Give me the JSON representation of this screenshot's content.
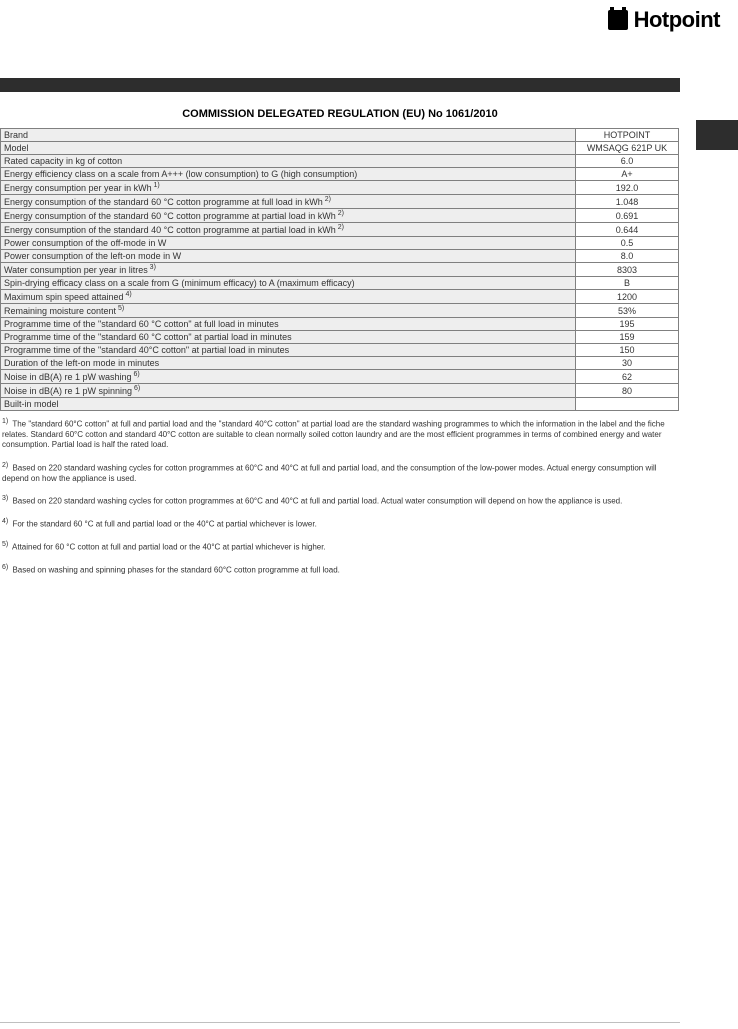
{
  "logo": {
    "text": "Hotpoint"
  },
  "title": "COMMISSION DELEGATED REGULATION (EU) No 1061/2010",
  "rows": [
    {
      "label": "Brand",
      "sup": "",
      "value": "HOTPOINT"
    },
    {
      "label": "Model",
      "sup": "",
      "value": "WMSAQG 621P UK"
    },
    {
      "label": "Rated capacity in kg of cotton",
      "sup": "",
      "value": "6.0"
    },
    {
      "label": "Energy efficiency class on a scale from A+++ (low consumption) to G (high consumption)",
      "sup": "",
      "value": "A+"
    },
    {
      "label": "Energy consumption per year in kWh",
      "sup": "1)",
      "value": "192.0"
    },
    {
      "label": "Energy consumption of the standard 60 °C cotton programme at full load in kWh",
      "sup": "2)",
      "value": "1.048"
    },
    {
      "label": "Energy consumption of the standard 60 °C cotton programme at partial load in kWh",
      "sup": "2)",
      "value": "0.691"
    },
    {
      "label": "Energy consumption of the standard 40 °C cotton programme at partial load in kWh",
      "sup": "2)",
      "value": "0.644"
    },
    {
      "label": "Power consumption of the off-mode in W",
      "sup": "",
      "value": "0.5"
    },
    {
      "label": "Power consumption of the left-on mode in W",
      "sup": "",
      "value": "8.0"
    },
    {
      "label": "Water consumption per year in litres",
      "sup": "3)",
      "value": "8303"
    },
    {
      "label": "Spin-drying efficacy class on a scale from G (minimum efficacy) to A (maximum efficacy)",
      "sup": "",
      "value": "B"
    },
    {
      "label": "Maximum spin speed attained",
      "sup": "4)",
      "value": "1200"
    },
    {
      "label": "Remaining moisture content",
      "sup": "5)",
      "value": "53%"
    },
    {
      "label": "Programme time of the \"standard 60 °C cotton\" at full load in minutes",
      "sup": "",
      "value": "195"
    },
    {
      "label": "Programme time of the \"standard 60 °C cotton\" at partial load in minutes",
      "sup": "",
      "value": "159"
    },
    {
      "label": "Programme time of the \"standard 40°C cotton\" at partial load in minutes",
      "sup": "",
      "value": "150"
    },
    {
      "label": "Duration of the left-on mode in minutes",
      "sup": "",
      "value": "30"
    },
    {
      "label": "Noise in dB(A) re 1 pW washing",
      "sup": "6)",
      "value": "62"
    },
    {
      "label": "Noise in dB(A) re 1 pW spinning",
      "sup": "6)",
      "value": "80"
    },
    {
      "label": "Built-in model",
      "sup": "",
      "value": ""
    }
  ],
  "footnotes": [
    {
      "sup": "1)",
      "text": "The \"standard 60°C cotton\" at full and partial load and the \"standard 40°C cotton\" at partial load are the standard washing programmes to which the information in the label and the fiche relates. Standard 60°C cotton and standard 40°C cotton are suitable to clean normally soiled cotton laundry and are the most efficient programmes in terms of combined energy and water consumption. Partial load is half the rated load."
    },
    {
      "sup": "2)",
      "text": "Based on 220 standard washing cycles for cotton programmes at 60°C and 40°C at full and partial load, and the consumption of the low-power modes. Actual energy consumption will depend on how the appliance is used."
    },
    {
      "sup": "3)",
      "text": "Based on 220 standard washing cycles for cotton programmes at 60°C and 40°C at full and partial load. Actual water consumption will depend on how the appliance is used."
    },
    {
      "sup": "4)",
      "text": "For the standard 60 °C at full and partial load or the 40°C at partial whichever is lower."
    },
    {
      "sup": "5)",
      "text": "Attained for 60 °C cotton at full and partial load or the 40°C at partial whichever is higher."
    },
    {
      "sup": "6)",
      "text": "Based on washing and spinning phases for the standard 60°C cotton programme at full load."
    }
  ],
  "colors": {
    "label_bg": "#eeeeee",
    "border": "#808080",
    "dark": "#2d2d2d",
    "text": "#333333"
  }
}
